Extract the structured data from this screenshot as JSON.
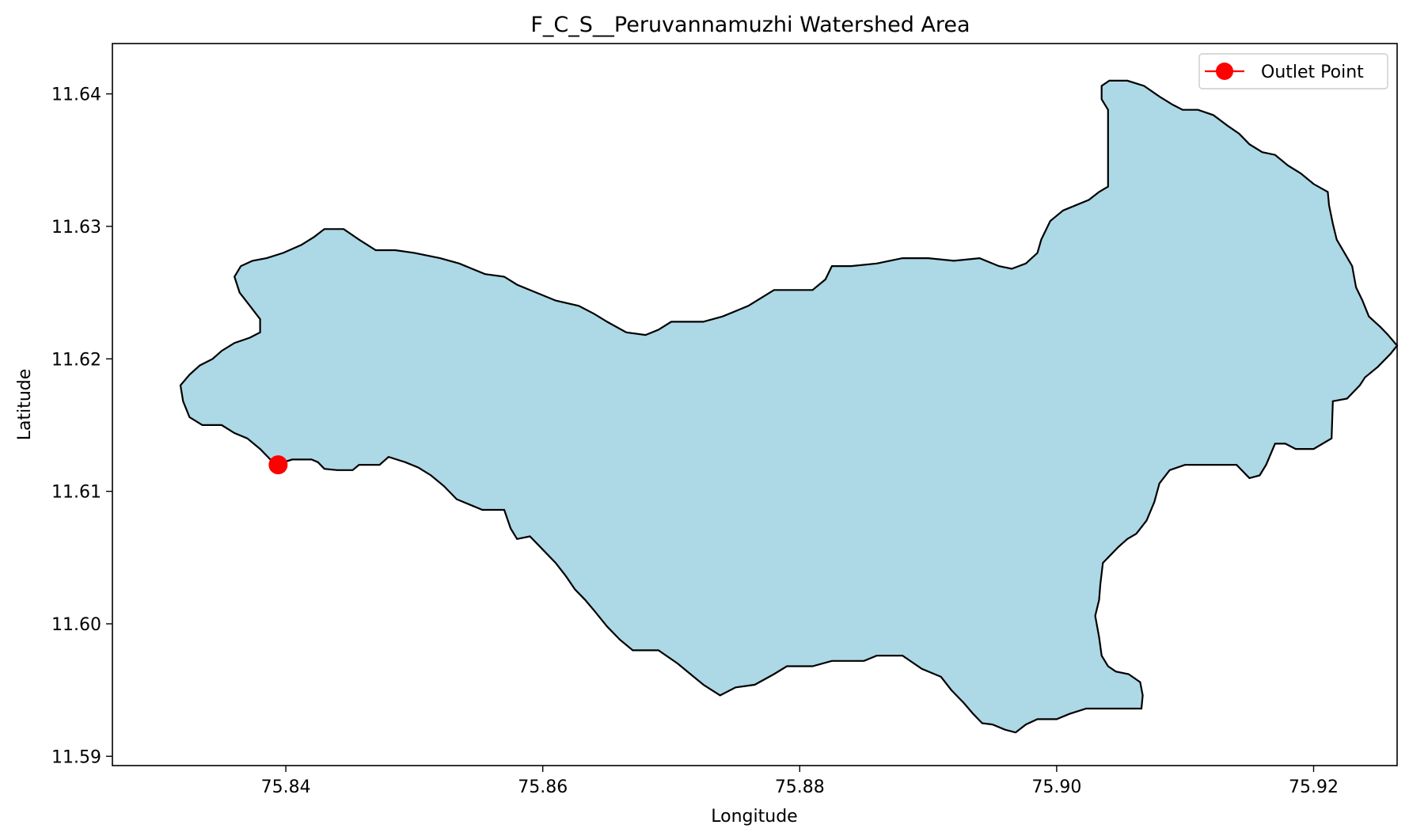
{
  "chart_data": {
    "type": "map",
    "title": "F_C_S__Peruvannamuzhi Watershed Area",
    "xlabel": "Longitude",
    "ylabel": "Latitude",
    "xlim": [
      75.8265,
      75.9265
    ],
    "ylim": [
      11.5893,
      11.6438
    ],
    "xticks": [
      75.84,
      75.86,
      75.88,
      75.9,
      75.92
    ],
    "xtick_labels": [
      "75.84",
      "75.86",
      "75.88",
      "75.90",
      "75.92"
    ],
    "yticks": [
      11.59,
      11.6,
      11.61,
      11.62,
      11.63,
      11.64
    ],
    "ytick_labels": [
      "11.59",
      "11.60",
      "11.61",
      "11.62",
      "11.63",
      "11.64"
    ],
    "watershed": {
      "fill_color": "#add8e6",
      "edge_color": "#000000",
      "boundary": [
        [
          75.8392,
          11.612
        ],
        [
          75.8405,
          11.6124
        ],
        [
          75.842,
          11.6124
        ],
        [
          75.8425,
          11.6122
        ],
        [
          75.843,
          11.6117
        ],
        [
          75.844,
          11.6116
        ],
        [
          75.8452,
          11.6116
        ],
        [
          75.8457,
          11.612
        ],
        [
          75.8473,
          11.612
        ],
        [
          75.848,
          11.6126
        ],
        [
          75.8493,
          11.6122
        ],
        [
          75.8503,
          11.6118
        ],
        [
          75.8513,
          11.6112
        ],
        [
          75.8523,
          11.6104
        ],
        [
          75.8533,
          11.6094
        ],
        [
          75.8543,
          11.609
        ],
        [
          75.8553,
          11.6086
        ],
        [
          75.857,
          11.6086
        ],
        [
          75.8575,
          11.6072
        ],
        [
          75.858,
          11.6064
        ],
        [
          75.859,
          11.6066
        ],
        [
          75.86,
          11.6056
        ],
        [
          75.861,
          11.6046
        ],
        [
          75.8618,
          11.6036
        ],
        [
          75.8625,
          11.6026
        ],
        [
          75.8633,
          11.6018
        ],
        [
          75.864,
          11.601
        ],
        [
          75.865,
          11.5998
        ],
        [
          75.866,
          11.5988
        ],
        [
          75.867,
          11.598
        ],
        [
          75.869,
          11.598
        ],
        [
          75.8705,
          11.597
        ],
        [
          75.8715,
          11.5962
        ],
        [
          75.8725,
          11.5954
        ],
        [
          75.8738,
          11.5946
        ],
        [
          75.875,
          11.5952
        ],
        [
          75.8765,
          11.5954
        ],
        [
          75.878,
          11.5962
        ],
        [
          75.879,
          11.5968
        ],
        [
          75.881,
          11.5968
        ],
        [
          75.8825,
          11.5972
        ],
        [
          75.885,
          11.5972
        ],
        [
          75.886,
          11.5976
        ],
        [
          75.888,
          11.5976
        ],
        [
          75.8895,
          11.5966
        ],
        [
          75.891,
          11.596
        ],
        [
          75.8918,
          11.595
        ],
        [
          75.8928,
          11.594
        ],
        [
          75.8935,
          11.5932
        ],
        [
          75.8942,
          11.5925
        ],
        [
          75.895,
          11.5924
        ],
        [
          75.896,
          11.592
        ],
        [
          75.8968,
          11.5918
        ],
        [
          75.8976,
          11.5924
        ],
        [
          75.8985,
          11.5928
        ],
        [
          75.9,
          11.5928
        ],
        [
          75.901,
          11.5932
        ],
        [
          75.9023,
          11.5936
        ],
        [
          75.9038,
          11.5936
        ],
        [
          75.9052,
          11.5936
        ],
        [
          75.9066,
          11.5936
        ],
        [
          75.9067,
          11.5946
        ],
        [
          75.9065,
          11.5956
        ],
        [
          75.9056,
          11.5962
        ],
        [
          75.9046,
          11.5964
        ],
        [
          75.904,
          11.5968
        ],
        [
          75.9035,
          11.5976
        ],
        [
          75.9033,
          11.599
        ],
        [
          75.903,
          11.6006
        ],
        [
          75.9033,
          11.6018
        ],
        [
          75.9034,
          11.603
        ],
        [
          75.9036,
          11.6046
        ],
        [
          75.904,
          11.605
        ],
        [
          75.9048,
          11.6058
        ],
        [
          75.9055,
          11.6064
        ],
        [
          75.9062,
          11.6068
        ],
        [
          75.907,
          11.6078
        ],
        [
          75.9076,
          11.6092
        ],
        [
          75.908,
          11.6106
        ],
        [
          75.9088,
          11.6116
        ],
        [
          75.91,
          11.612
        ],
        [
          75.912,
          11.612
        ],
        [
          75.914,
          11.612
        ],
        [
          75.915,
          11.611
        ],
        [
          75.9158,
          11.6112
        ],
        [
          75.9163,
          11.612
        ],
        [
          75.917,
          11.6136
        ],
        [
          75.9178,
          11.6136
        ],
        [
          75.9186,
          11.6132
        ],
        [
          75.92,
          11.6132
        ],
        [
          75.9214,
          11.614
        ],
        [
          75.9215,
          11.6168
        ],
        [
          75.9226,
          11.617
        ],
        [
          75.9236,
          11.618
        ],
        [
          75.924,
          11.6186
        ],
        [
          75.925,
          11.6194
        ],
        [
          75.926,
          11.6204
        ],
        [
          75.9265,
          11.621
        ],
        [
          75.9258,
          11.6218
        ],
        [
          75.9252,
          11.6224
        ],
        [
          75.9243,
          11.6232
        ],
        [
          75.9238,
          11.6244
        ],
        [
          75.9233,
          11.6254
        ],
        [
          75.923,
          11.627
        ],
        [
          75.9224,
          11.628
        ],
        [
          75.9218,
          11.629
        ],
        [
          75.9215,
          11.6302
        ],
        [
          75.9212,
          11.6316
        ],
        [
          75.9211,
          11.6326
        ],
        [
          75.92,
          11.6332
        ],
        [
          75.919,
          11.634
        ],
        [
          75.918,
          11.6346
        ],
        [
          75.917,
          11.6354
        ],
        [
          75.916,
          11.6356
        ],
        [
          75.915,
          11.6362
        ],
        [
          75.9142,
          11.637
        ],
        [
          75.9133,
          11.6376
        ],
        [
          75.9122,
          11.6384
        ],
        [
          75.911,
          11.6388
        ],
        [
          75.9098,
          11.6388
        ],
        [
          75.909,
          11.6392
        ],
        [
          75.908,
          11.6398
        ],
        [
          75.9068,
          11.6406
        ],
        [
          75.9055,
          11.641
        ],
        [
          75.9041,
          11.641
        ],
        [
          75.9035,
          11.6406
        ],
        [
          75.9035,
          11.6396
        ],
        [
          75.904,
          11.6388
        ],
        [
          75.904,
          11.636
        ],
        [
          75.904,
          11.634
        ],
        [
          75.904,
          11.633
        ],
        [
          75.9033,
          11.6326
        ],
        [
          75.9025,
          11.632
        ],
        [
          75.9015,
          11.6316
        ],
        [
          75.9005,
          11.6312
        ],
        [
          75.8995,
          11.6304
        ],
        [
          75.8988,
          11.629
        ],
        [
          75.8985,
          11.628
        ],
        [
          75.8976,
          11.6272
        ],
        [
          75.8965,
          11.6268
        ],
        [
          75.8955,
          11.627
        ],
        [
          75.894,
          11.6276
        ],
        [
          75.892,
          11.6274
        ],
        [
          75.89,
          11.6276
        ],
        [
          75.888,
          11.6276
        ],
        [
          75.886,
          11.6272
        ],
        [
          75.884,
          11.627
        ],
        [
          75.8825,
          11.627
        ],
        [
          75.882,
          11.626
        ],
        [
          75.881,
          11.6252
        ],
        [
          75.8795,
          11.6252
        ],
        [
          75.878,
          11.6252
        ],
        [
          75.877,
          11.6246
        ],
        [
          75.876,
          11.624
        ],
        [
          75.875,
          11.6236
        ],
        [
          75.874,
          11.6232
        ],
        [
          75.8725,
          11.6228
        ],
        [
          75.87,
          11.6228
        ],
        [
          75.869,
          11.6222
        ],
        [
          75.868,
          11.6218
        ],
        [
          75.8665,
          11.622
        ],
        [
          75.865,
          11.6228
        ],
        [
          75.864,
          11.6234
        ],
        [
          75.8628,
          11.624
        ],
        [
          75.861,
          11.6244
        ],
        [
          75.8595,
          11.625
        ],
        [
          75.858,
          11.6256
        ],
        [
          75.857,
          11.6262
        ],
        [
          75.8555,
          11.6264
        ],
        [
          75.8545,
          11.6268
        ],
        [
          75.8535,
          11.6272
        ],
        [
          75.852,
          11.6276
        ],
        [
          75.85,
          11.628
        ],
        [
          75.8485,
          11.6282
        ],
        [
          75.847,
          11.6282
        ],
        [
          75.8457,
          11.629
        ],
        [
          75.8445,
          11.6298
        ],
        [
          75.843,
          11.6298
        ],
        [
          75.8422,
          11.6292
        ],
        [
          75.8412,
          11.6286
        ],
        [
          75.8398,
          11.628
        ],
        [
          75.8385,
          11.6276
        ],
        [
          75.8374,
          11.6274
        ],
        [
          75.8365,
          11.627
        ],
        [
          75.836,
          11.6262
        ],
        [
          75.8364,
          11.625
        ],
        [
          75.8372,
          11.624
        ],
        [
          75.838,
          11.623
        ],
        [
          75.838,
          11.622
        ],
        [
          75.8372,
          11.6216
        ],
        [
          75.836,
          11.6212
        ],
        [
          75.835,
          11.6206
        ],
        [
          75.8343,
          11.62
        ],
        [
          75.8333,
          11.6195
        ],
        [
          75.8325,
          11.6188
        ],
        [
          75.8318,
          11.618
        ],
        [
          75.832,
          11.6168
        ],
        [
          75.8325,
          11.6156
        ],
        [
          75.8335,
          11.615
        ],
        [
          75.835,
          11.615
        ],
        [
          75.836,
          11.6144
        ],
        [
          75.837,
          11.614
        ],
        [
          75.838,
          11.6132
        ]
      ]
    },
    "outlet_point": {
      "name": "Outlet Point",
      "lon": 75.8394,
      "lat": 11.612,
      "color": "#ff0000"
    },
    "legend": {
      "placement": "top-right",
      "entries": [
        "Outlet Point"
      ]
    },
    "grid": false
  }
}
